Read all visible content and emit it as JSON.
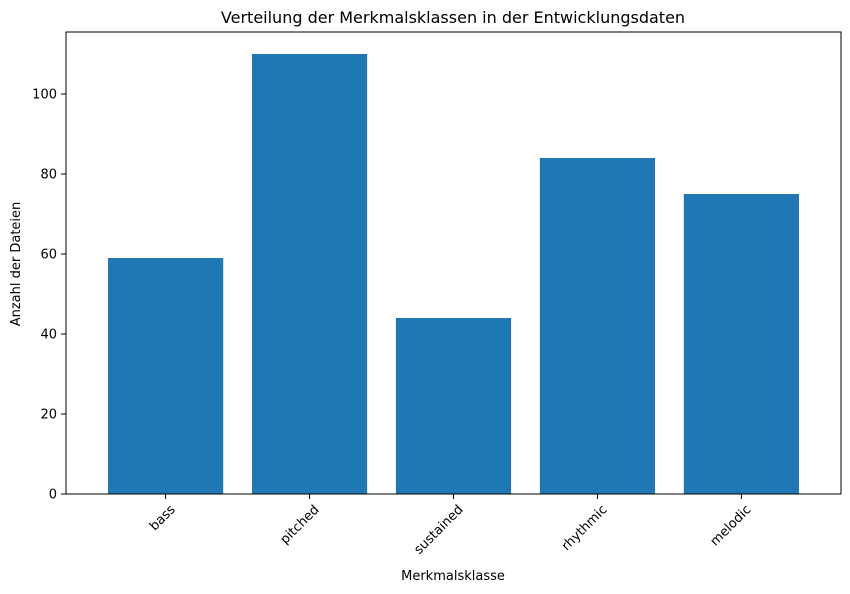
{
  "chart_data": {
    "type": "bar",
    "title": "Verteilung der Merkmalsklassen in der Entwicklungsdaten",
    "xlabel": "Merkmalsklasse",
    "ylabel": "Anzahl der Dateien",
    "categories": [
      "bass",
      "pitched",
      "sustained",
      "rhythmic",
      "melodic"
    ],
    "values": [
      59,
      110,
      44,
      84,
      75
    ],
    "ylim": [
      0,
      115.5
    ],
    "yticks": [
      0,
      20,
      40,
      60,
      80,
      100
    ],
    "x_tick_rotation_deg": 45,
    "grid": false,
    "legend": "none",
    "bar_color": "#1f77b4"
  }
}
